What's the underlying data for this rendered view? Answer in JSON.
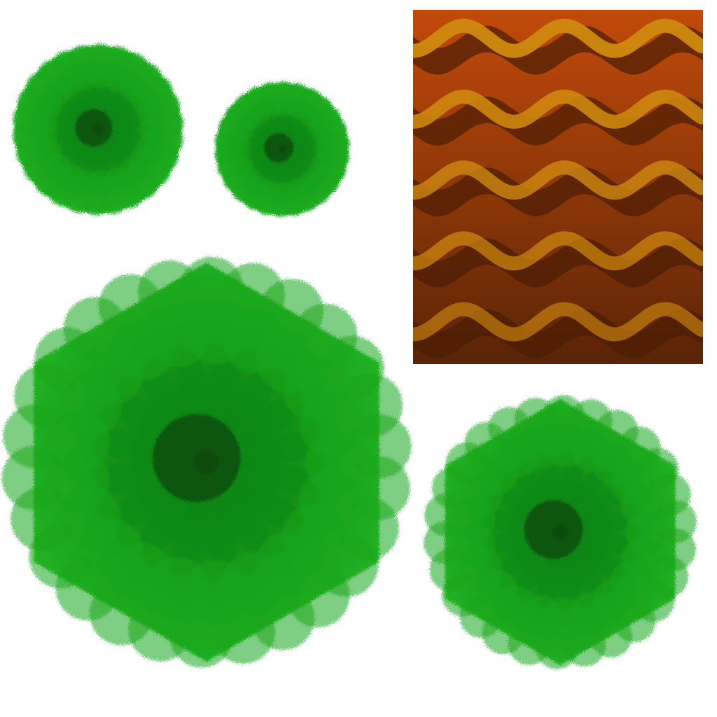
{
  "sheet": {
    "background": "#ffffff",
    "foliage": {
      "colors": {
        "core": "#0a4a0c",
        "mid": "#118a14",
        "outer": "#1aa51d",
        "tip": "#2dbf2a"
      },
      "bushes": [
        {
          "id": "bush-small-a",
          "shape": "round"
        },
        {
          "id": "bush-small-b",
          "shape": "round"
        },
        {
          "id": "bush-large",
          "shape": "hexagonal"
        },
        {
          "id": "bush-medium",
          "shape": "hexagonal"
        }
      ]
    },
    "wave_texture": {
      "colors": {
        "band_light": "#c24a0a",
        "band_dark": "#5a2406",
        "wave_dark": "#4a1c04",
        "wave_gold": "#d08a10"
      },
      "wave_count": 5
    }
  }
}
